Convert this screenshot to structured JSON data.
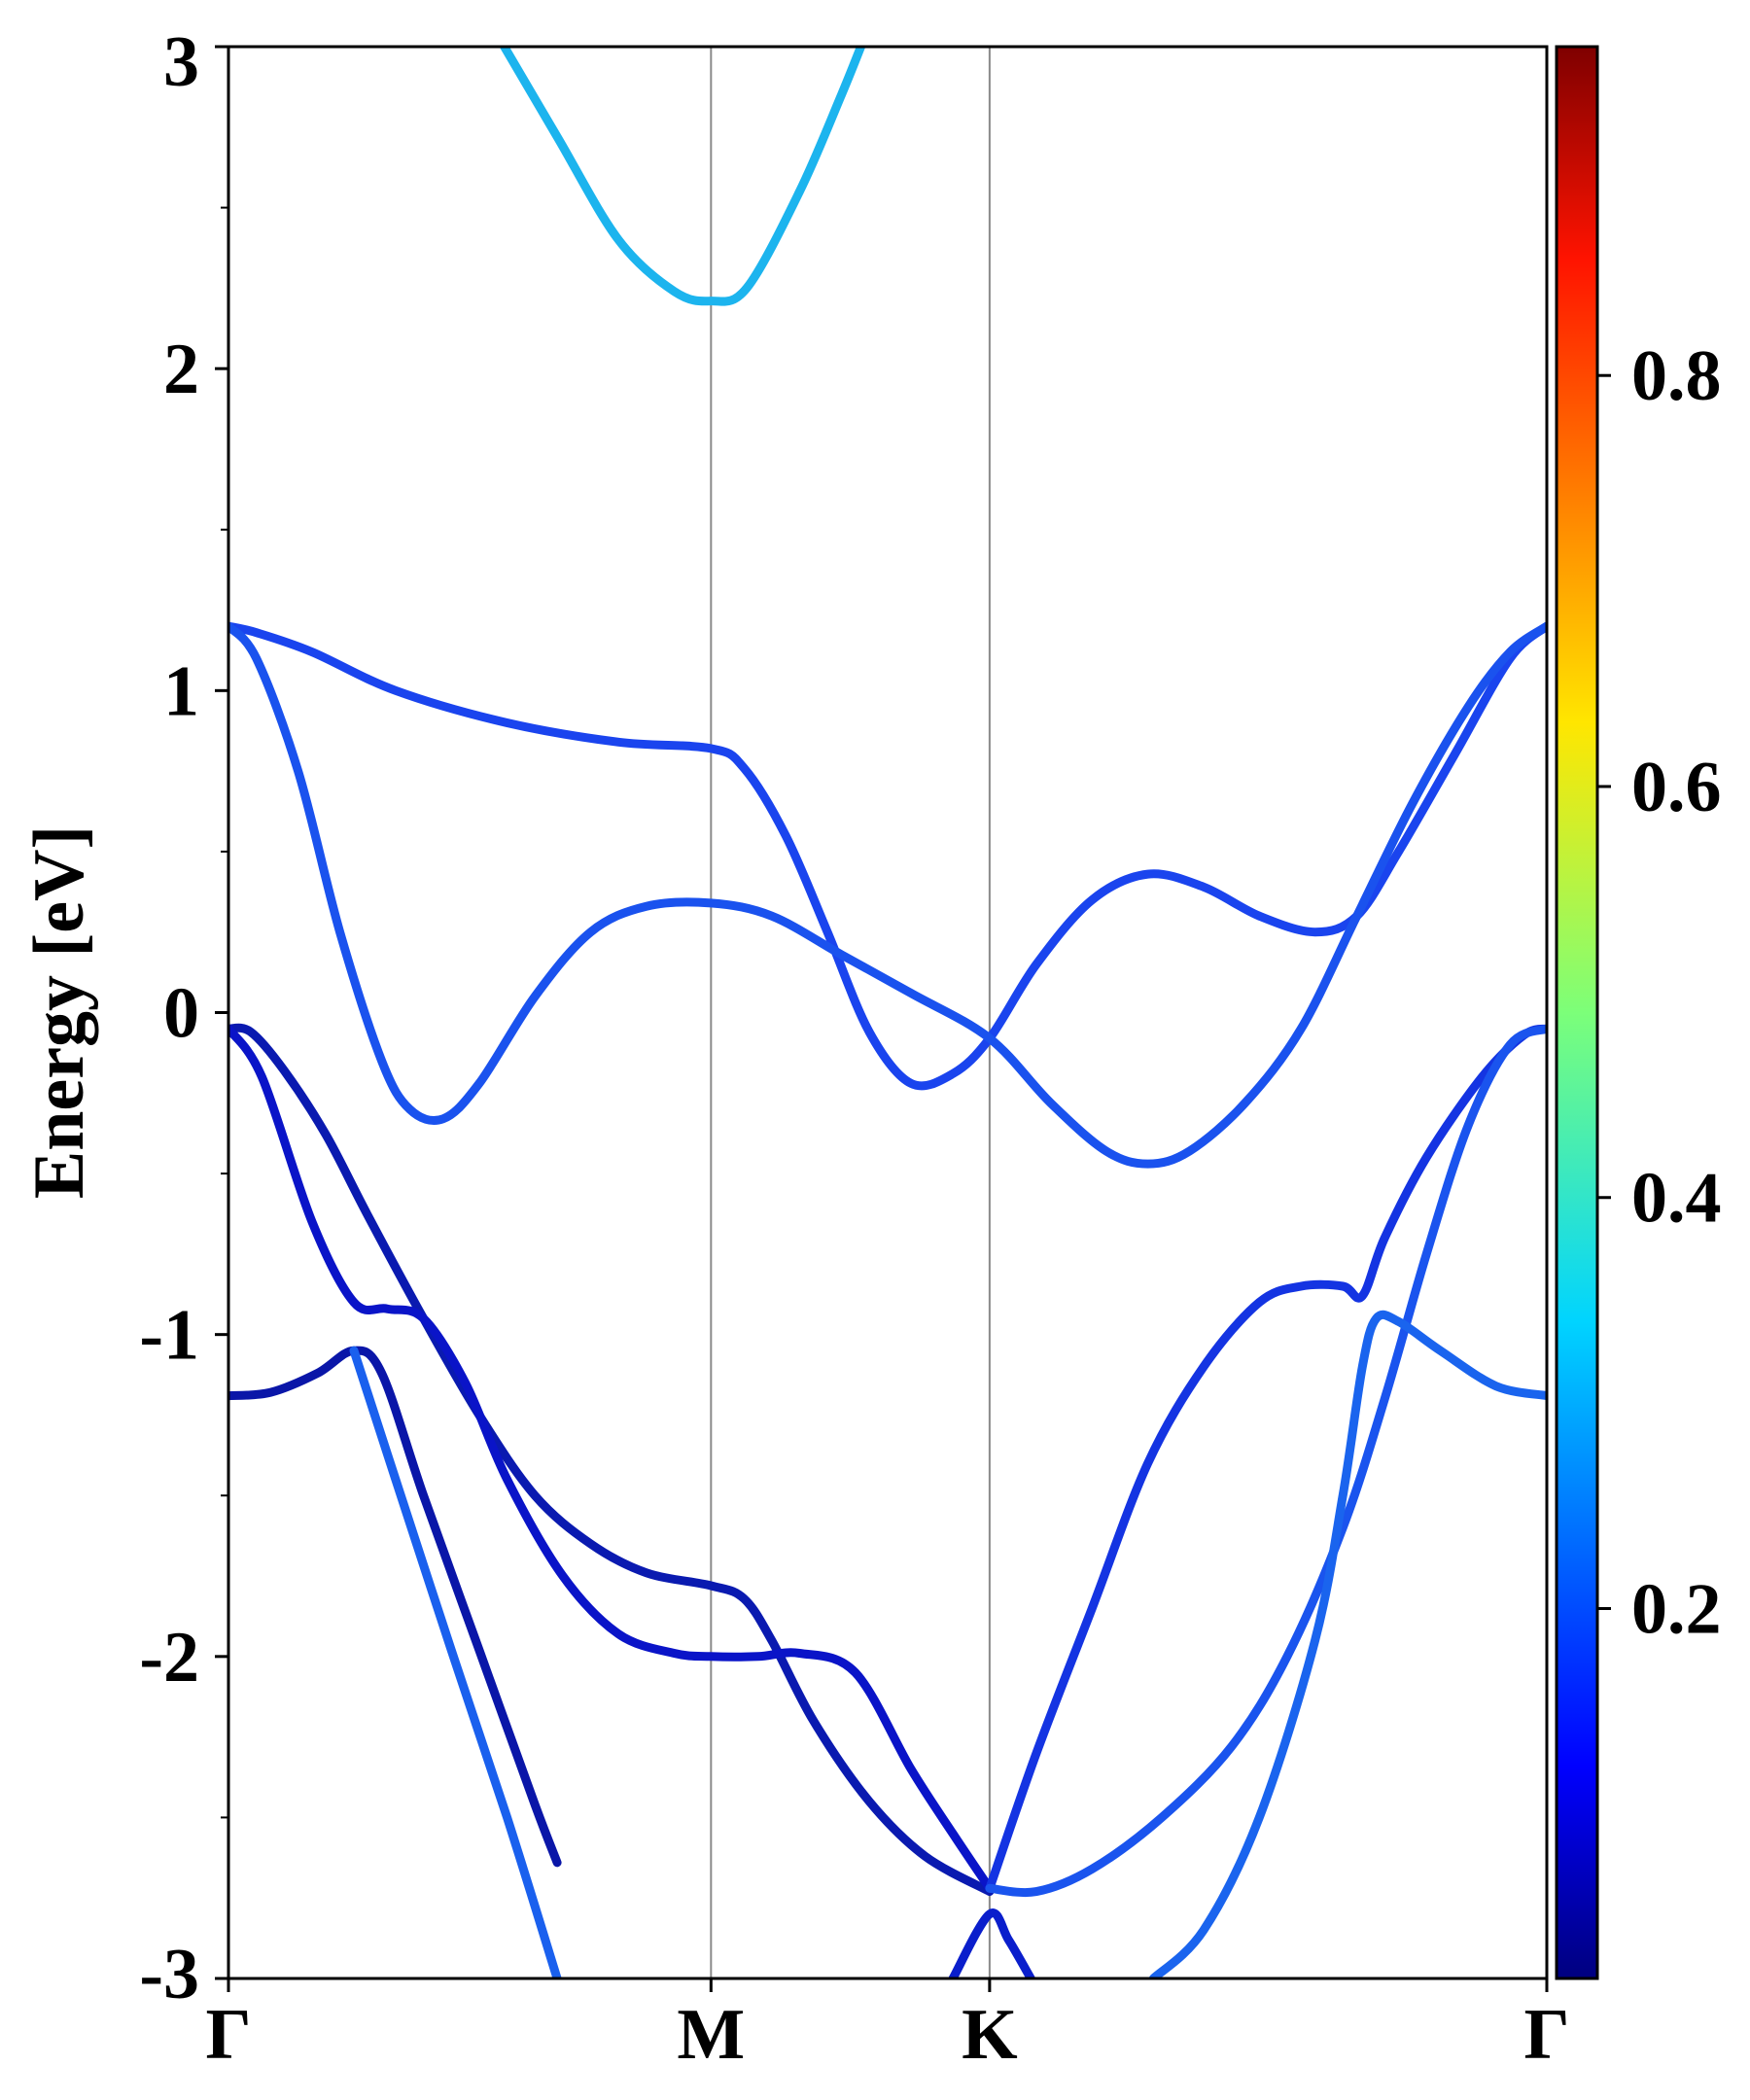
{
  "chart_data": {
    "type": "line",
    "title": "",
    "xlabel": "",
    "ylabel": "Energy [eV]",
    "ylim": [
      -3,
      3
    ],
    "x_path": [
      0,
      1.732,
      2.732,
      4.732
    ],
    "x_ticks": [
      {
        "x": 0,
        "label": "Γ"
      },
      {
        "x": 1.732,
        "label": "M"
      },
      {
        "x": 2.732,
        "label": "K"
      },
      {
        "x": 4.732,
        "label": "Γ"
      }
    ],
    "y_ticks": [
      {
        "y": 3,
        "label": "3"
      },
      {
        "y": 2,
        "label": "2"
      },
      {
        "y": 1,
        "label": "1"
      },
      {
        "y": 0,
        "label": "0"
      },
      {
        "y": -1,
        "label": "-1"
      },
      {
        "y": -2,
        "label": "-2"
      },
      {
        "y": -3,
        "label": "-3"
      }
    ],
    "y_minor_ticks": [
      2.5,
      1.5,
      0.5,
      -0.5,
      -1.5,
      -2.5
    ],
    "high_symmetry_lines": [
      1.732,
      2.732
    ],
    "colorbar": {
      "colormap": "jet",
      "range": [
        0.02,
        0.96
      ],
      "ticks": [
        {
          "value": 0.2,
          "label": "0.2"
        },
        {
          "value": 0.4,
          "label": "0.4"
        },
        {
          "value": 0.6,
          "label": "0.6"
        },
        {
          "value": 0.8,
          "label": "0.8"
        }
      ]
    },
    "bands": [
      {
        "color": "#1cb4ee",
        "points": [
          [
            0.99,
            3.0
          ],
          [
            1.18,
            2.72
          ],
          [
            1.4,
            2.4
          ],
          [
            1.6,
            2.24
          ],
          [
            1.732,
            2.21
          ],
          [
            1.86,
            2.25
          ],
          [
            2.05,
            2.55
          ],
          [
            2.2,
            2.85
          ],
          [
            2.27,
            3.0
          ]
        ]
      },
      {
        "color": "#1a44ee",
        "points": [
          [
            0,
            1.2
          ],
          [
            0.1,
            1.18
          ],
          [
            0.3,
            1.12
          ],
          [
            0.6,
            1.0
          ],
          [
            1.0,
            0.9
          ],
          [
            1.4,
            0.84
          ],
          [
            1.732,
            0.82
          ],
          [
            1.85,
            0.76
          ],
          [
            2.0,
            0.55
          ],
          [
            2.15,
            0.25
          ],
          [
            2.3,
            -0.06
          ],
          [
            2.45,
            -0.22
          ],
          [
            2.6,
            -0.19
          ],
          [
            2.732,
            -0.08
          ],
          [
            2.9,
            0.15
          ],
          [
            3.1,
            0.35
          ],
          [
            3.3,
            0.43
          ],
          [
            3.5,
            0.39
          ],
          [
            3.7,
            0.3
          ],
          [
            3.9,
            0.25
          ],
          [
            4.05,
            0.3
          ],
          [
            4.2,
            0.5
          ],
          [
            4.4,
            0.8
          ],
          [
            4.6,
            1.1
          ],
          [
            4.732,
            1.2
          ]
        ]
      },
      {
        "color": "#1a52ee",
        "points": [
          [
            0,
            1.2
          ],
          [
            0.1,
            1.1
          ],
          [
            0.25,
            0.75
          ],
          [
            0.4,
            0.25
          ],
          [
            0.55,
            -0.15
          ],
          [
            0.65,
            -0.3
          ],
          [
            0.77,
            -0.33
          ],
          [
            0.9,
            -0.22
          ],
          [
            1.1,
            0.05
          ],
          [
            1.3,
            0.25
          ],
          [
            1.5,
            0.33
          ],
          [
            1.732,
            0.34
          ],
          [
            1.95,
            0.3
          ],
          [
            2.2,
            0.18
          ],
          [
            2.45,
            0.06
          ],
          [
            2.732,
            -0.08
          ],
          [
            2.95,
            -0.28
          ],
          [
            3.15,
            -0.43
          ],
          [
            3.3,
            -0.47
          ],
          [
            3.45,
            -0.43
          ],
          [
            3.65,
            -0.28
          ],
          [
            3.85,
            -0.05
          ],
          [
            4.05,
            0.3
          ],
          [
            4.25,
            0.65
          ],
          [
            4.45,
            0.95
          ],
          [
            4.6,
            1.12
          ],
          [
            4.732,
            1.2
          ]
        ]
      },
      {
        "color": "#0a1ab0",
        "points": [
          [
            0,
            -0.05
          ],
          [
            0.08,
            -0.06
          ],
          [
            0.2,
            -0.18
          ],
          [
            0.35,
            -0.38
          ],
          [
            0.5,
            -0.63
          ],
          [
            0.7,
            -0.95
          ],
          [
            0.9,
            -1.25
          ],
          [
            1.1,
            -1.5
          ],
          [
            1.3,
            -1.65
          ],
          [
            1.5,
            -1.74
          ],
          [
            1.732,
            -1.78
          ],
          [
            1.85,
            -1.82
          ],
          [
            1.95,
            -1.95
          ],
          [
            2.1,
            -2.2
          ],
          [
            2.3,
            -2.45
          ],
          [
            2.5,
            -2.62
          ],
          [
            2.732,
            -2.73
          ]
        ]
      },
      {
        "color": "#0a14c8",
        "points": [
          [
            0,
            -0.05
          ],
          [
            0.12,
            -0.2
          ],
          [
            0.3,
            -0.65
          ],
          [
            0.45,
            -0.9
          ],
          [
            0.57,
            -0.92
          ],
          [
            0.7,
            -0.95
          ],
          [
            0.85,
            -1.15
          ],
          [
            1.0,
            -1.45
          ],
          [
            1.2,
            -1.75
          ],
          [
            1.4,
            -1.93
          ],
          [
            1.6,
            -1.99
          ],
          [
            1.732,
            -2.0
          ],
          [
            1.9,
            -2.0
          ],
          [
            2.05,
            -1.99
          ],
          [
            2.25,
            -2.05
          ],
          [
            2.45,
            -2.35
          ],
          [
            2.6,
            -2.55
          ],
          [
            2.732,
            -2.72
          ]
        ]
      },
      {
        "color": "#0a16a8",
        "points": [
          [
            0,
            -1.19
          ],
          [
            0.15,
            -1.18
          ],
          [
            0.32,
            -1.12
          ],
          [
            0.45,
            -1.05
          ],
          [
            0.55,
            -1.12
          ],
          [
            0.7,
            -1.5
          ],
          [
            0.9,
            -1.98
          ],
          [
            1.1,
            -2.46
          ],
          [
            1.18,
            -2.64
          ]
        ]
      },
      {
        "color": "#1a60ee",
        "points": [
          [
            0.45,
            -1.05
          ],
          [
            0.6,
            -1.45
          ],
          [
            0.8,
            -1.98
          ],
          [
            1.0,
            -2.5
          ],
          [
            1.18,
            -3.0
          ]
        ]
      },
      {
        "color": "#0a1ecc",
        "points": [
          [
            2.6,
            -3.0
          ],
          [
            2.732,
            -2.8
          ],
          [
            2.8,
            -2.88
          ],
          [
            2.88,
            -3.0
          ]
        ]
      },
      {
        "color": "#1434e2",
        "points": [
          [
            2.732,
            -2.72
          ],
          [
            2.9,
            -2.3
          ],
          [
            3.1,
            -1.85
          ],
          [
            3.3,
            -1.4
          ],
          [
            3.5,
            -1.1
          ],
          [
            3.7,
            -0.9
          ],
          [
            3.85,
            -0.85
          ],
          [
            4.0,
            -0.85
          ],
          [
            4.07,
            -0.88
          ],
          [
            4.15,
            -0.7
          ],
          [
            4.3,
            -0.45
          ],
          [
            4.5,
            -0.2
          ],
          [
            4.65,
            -0.07
          ],
          [
            4.732,
            -0.05
          ]
        ]
      },
      {
        "color": "#1a54ee",
        "points": [
          [
            2.732,
            -2.72
          ],
          [
            2.9,
            -2.73
          ],
          [
            3.1,
            -2.66
          ],
          [
            3.35,
            -2.5
          ],
          [
            3.6,
            -2.28
          ],
          [
            3.8,
            -2.0
          ],
          [
            4.0,
            -1.6
          ],
          [
            4.15,
            -1.2
          ],
          [
            4.3,
            -0.75
          ],
          [
            4.45,
            -0.35
          ],
          [
            4.6,
            -0.1
          ],
          [
            4.732,
            -0.05
          ]
        ]
      },
      {
        "color": "#1a64ee",
        "points": [
          [
            3.32,
            -3.0
          ],
          [
            3.5,
            -2.85
          ],
          [
            3.7,
            -2.5
          ],
          [
            3.9,
            -1.95
          ],
          [
            4.0,
            -1.5
          ],
          [
            4.07,
            -1.1
          ],
          [
            4.12,
            -0.95
          ],
          [
            4.2,
            -0.96
          ],
          [
            4.35,
            -1.05
          ],
          [
            4.55,
            -1.16
          ],
          [
            4.732,
            -1.19
          ]
        ]
      }
    ]
  }
}
